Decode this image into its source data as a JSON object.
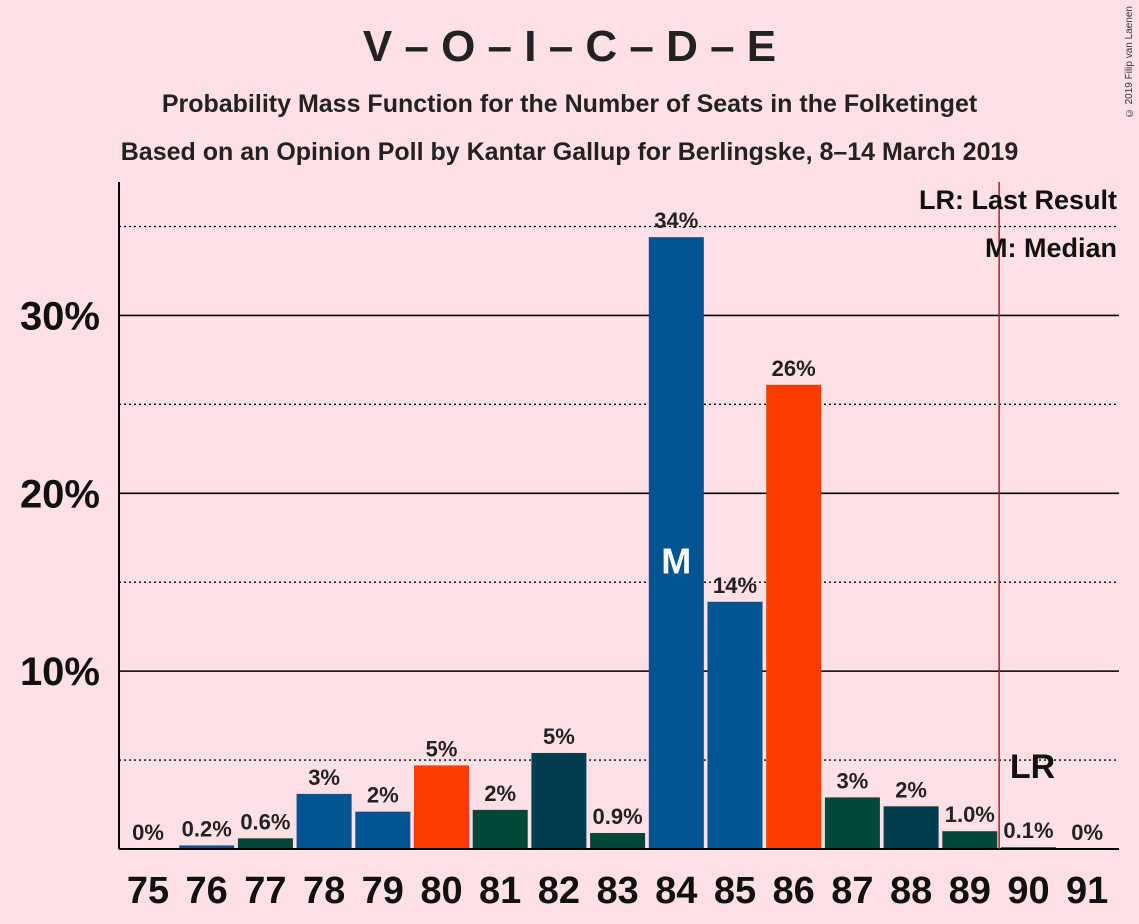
{
  "title": "V – O – I – C – D – E",
  "subtitle1": "Probability Mass Function for the Number of Seats in the Folketinget",
  "subtitle2": "Based on an Opinion Poll by Kantar Gallup for Berlingske, 8–14 March 2019",
  "copyright": "© 2019 Filip van Laenen",
  "legend": {
    "lr": "LR: Last Result",
    "median": "M: Median"
  },
  "markers": {
    "median_label": "M",
    "lr_label": "LR",
    "median_seat": 84,
    "last_result_seat": 90
  },
  "colors": {
    "blue": "#005492",
    "red": "#ff3c00",
    "green": "#00483a",
    "teal": "#003d4f",
    "lr_line": "#c8102e",
    "background": "#ffe1e5"
  },
  "chart_data": {
    "type": "bar",
    "categories": [
      "75",
      "76",
      "77",
      "78",
      "79",
      "80",
      "81",
      "82",
      "83",
      "84",
      "85",
      "86",
      "87",
      "88",
      "89",
      "90",
      "91"
    ],
    "values": [
      0,
      0.2,
      0.6,
      3.1,
      2.1,
      4.7,
      2.2,
      5.4,
      0.9,
      34.4,
      13.9,
      26.1,
      2.9,
      2.4,
      1.0,
      0.1,
      0
    ],
    "labels": [
      "0%",
      "0.2%",
      "0.6%",
      "3%",
      "2%",
      "5%",
      "2%",
      "5%",
      "0.9%",
      "34%",
      "14%",
      "26%",
      "3%",
      "2%",
      "1.0%",
      "0.1%",
      "0%"
    ],
    "bar_colors": [
      "#005492",
      "#005492",
      "#00483a",
      "#005492",
      "#005492",
      "#ff3c00",
      "#00483a",
      "#003d4f",
      "#00483a",
      "#005492",
      "#005492",
      "#ff3c00",
      "#00483a",
      "#003d4f",
      "#00483a",
      "#003d4f",
      "#005492"
    ],
    "yticks": [
      10,
      20,
      30
    ],
    "ytick_labels": [
      "10%",
      "20%",
      "30%"
    ],
    "ylim": [
      0,
      37.5
    ],
    "grid": "solid at 10% steps, dotted at 5% steps",
    "legend_position": "top-right"
  }
}
